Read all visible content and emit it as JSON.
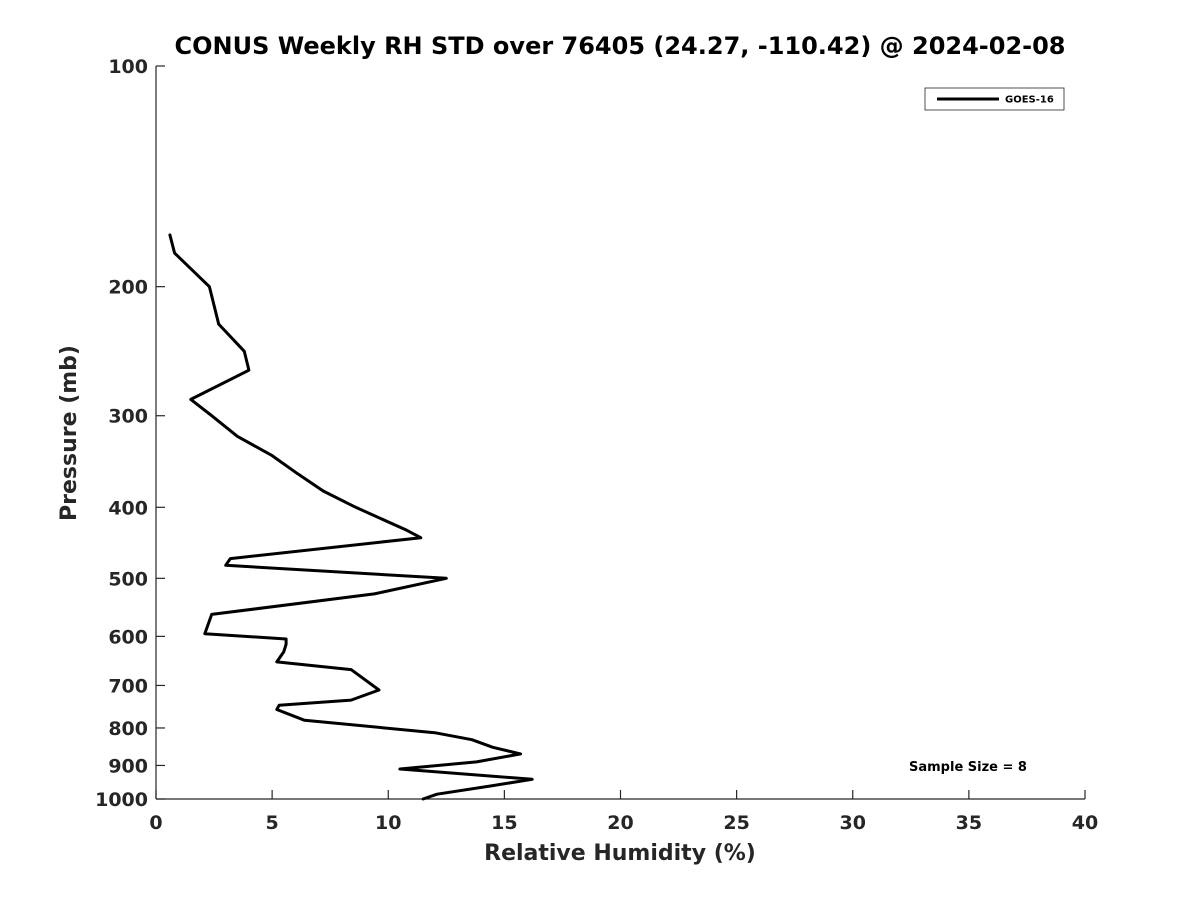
{
  "chart_data": {
    "type": "line",
    "title": "CONUS Weekly RH STD over 76405 (24.27, -110.42) @ 2024-02-08",
    "xlabel": "Relative Humidity (%)",
    "ylabel": "Pressure (mb)",
    "xlim": [
      0,
      40
    ],
    "ylim": [
      100,
      1000
    ],
    "y_scale": "log",
    "y_reversed": true,
    "grid": false,
    "legend_position": "top-right",
    "x_ticks": [
      "0",
      "5",
      "10",
      "15",
      "20",
      "25",
      "30",
      "35",
      "40"
    ],
    "y_ticks": [
      "100",
      "200",
      "300",
      "400",
      "500",
      "600",
      "700",
      "800",
      "900",
      "1000"
    ],
    "annotation": "Sample Size = 8",
    "series": [
      {
        "name": "GOES-16",
        "color": "#000000",
        "x": [
          11.5,
          12.1,
          14.4,
          16.2,
          10.5,
          13.8,
          15.7,
          14.5,
          13.6,
          12.0,
          6.4,
          5.2,
          5.3,
          8.4,
          9.6,
          8.4,
          5.2,
          5.5,
          5.6,
          5.6,
          2.1,
          2.4,
          9.4,
          12.5,
          3.0,
          3.2,
          11.4,
          10.8,
          8.6,
          7.2,
          6.1,
          5.0,
          3.5,
          2.4,
          1.5,
          4.0,
          3.8,
          2.7,
          2.3,
          0.8,
          0.6
        ],
        "y": [
          1000,
          985,
          960,
          940,
          910,
          890,
          868,
          850,
          830,
          812,
          781,
          755,
          745,
          733,
          710,
          666,
          650,
          630,
          615,
          605,
          595,
          560,
          525,
          500,
          480,
          470,
          440,
          430,
          400,
          380,
          360,
          340,
          320,
          300,
          285,
          260,
          245,
          225,
          200,
          180,
          170
        ]
      }
    ]
  }
}
